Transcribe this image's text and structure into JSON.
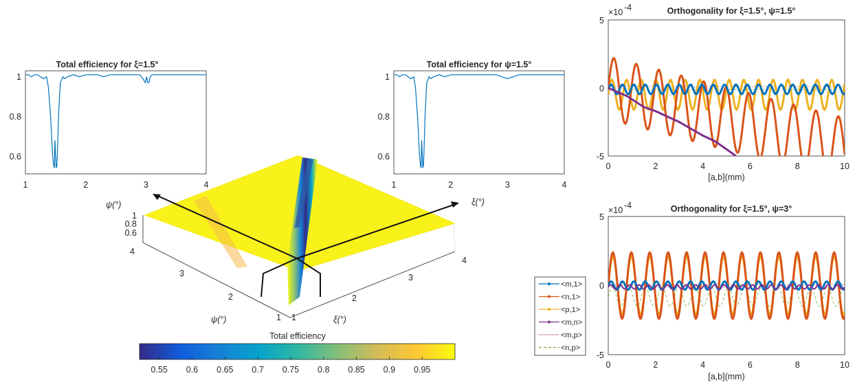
{
  "chart_data": [
    {
      "id": "eff_xi",
      "type": "line",
      "title": "Total efficiency for ξ=1.5°",
      "xlim": [
        1,
        4
      ],
      "ylim": [
        0.5,
        1.02
      ],
      "xticks": [
        "1",
        "2",
        "3",
        "4"
      ],
      "yticks": [
        "0.6",
        "0.8",
        "1"
      ],
      "series": [
        {
          "color": "#0072BD",
          "x": [
            1.0,
            1.05,
            1.1,
            1.15,
            1.2,
            1.25,
            1.3,
            1.35,
            1.38,
            1.42,
            1.45,
            1.47,
            1.48,
            1.49,
            1.5,
            1.51,
            1.52,
            1.53,
            1.55,
            1.58,
            1.62,
            1.65,
            1.7,
            1.8,
            1.9,
            2.0,
            2.1,
            2.2,
            2.3,
            2.4,
            2.5,
            2.6,
            2.7,
            2.8,
            2.9,
            2.95,
            2.97,
            2.99,
            3.01,
            3.03,
            3.05,
            3.07,
            3.1,
            3.2,
            3.3,
            3.5,
            3.7,
            4.0
          ],
          "y": [
            1.0,
            1.0,
            0.99,
            1.0,
            1.0,
            0.99,
            0.98,
            0.99,
            0.94,
            0.78,
            0.6,
            0.54,
            0.53,
            0.67,
            0.6,
            0.53,
            0.54,
            0.6,
            0.8,
            0.96,
            0.99,
            0.98,
            0.99,
            1.0,
            0.99,
            1.0,
            1.0,
            1.0,
            0.99,
            1.0,
            1.0,
            1.0,
            1.0,
            1.0,
            1.0,
            0.98,
            0.97,
            0.96,
            0.99,
            0.96,
            0.96,
            0.99,
            1.0,
            1.0,
            1.0,
            1.0,
            1.0,
            1.0
          ]
        }
      ]
    },
    {
      "id": "eff_psi",
      "type": "line",
      "title": "Total efficiency for ψ=1.5°",
      "xlim": [
        1,
        4
      ],
      "ylim": [
        0.5,
        1.02
      ],
      "xticks": [
        "1",
        "2",
        "3",
        "4"
      ],
      "yticks": [
        "0.6",
        "0.8",
        "1"
      ],
      "series": [
        {
          "color": "#0072BD",
          "x": [
            1.0,
            1.05,
            1.1,
            1.15,
            1.2,
            1.25,
            1.3,
            1.35,
            1.38,
            1.42,
            1.45,
            1.47,
            1.48,
            1.49,
            1.5,
            1.51,
            1.52,
            1.53,
            1.55,
            1.58,
            1.62,
            1.65,
            1.7,
            1.8,
            1.9,
            2.0,
            2.2,
            2.4,
            2.6,
            2.8,
            2.9,
            2.95,
            3.0,
            3.05,
            3.1,
            3.2,
            3.4,
            3.6,
            3.8,
            4.0
          ],
          "y": [
            1.0,
            1.0,
            0.99,
            1.0,
            1.0,
            0.99,
            0.98,
            0.99,
            0.94,
            0.78,
            0.6,
            0.54,
            0.53,
            0.67,
            0.6,
            0.53,
            0.54,
            0.6,
            0.8,
            0.96,
            0.99,
            0.98,
            0.99,
            1.0,
            0.99,
            1.0,
            1.0,
            1.0,
            1.0,
            1.0,
            0.99,
            0.985,
            0.98,
            0.985,
            0.99,
            1.0,
            1.0,
            1.0,
            1.0,
            1.0
          ]
        }
      ]
    },
    {
      "id": "surface",
      "type": "heatmap",
      "zlabel_ticks": [
        "1",
        "0.8",
        "0.6"
      ],
      "psi_ticks": [
        "4",
        "3",
        "2",
        "1"
      ],
      "xi_ticks": [
        "1",
        "2",
        "3",
        "4"
      ],
      "psi_label": "ψ(°)",
      "xi_label": "ξ(°)",
      "psi_label_top": "ψ(°)",
      "xi_label_top": "ξ(°)"
    },
    {
      "id": "colorbar",
      "type": "heatmap",
      "title": "Total efficiency",
      "range": [
        0.52,
        1.0
      ],
      "ticks": [
        "0.55",
        "0.6",
        "0.65",
        "0.7",
        "0.75",
        "0.8",
        "0.85",
        "0.9",
        "0.95"
      ],
      "tick_values": [
        0.55,
        0.6,
        0.65,
        0.7,
        0.75,
        0.8,
        0.85,
        0.9,
        0.95
      ],
      "colormap": [
        "#352A87",
        "#0F5CDD",
        "#1481D6",
        "#06A4CA",
        "#2EB7A4",
        "#87BF77",
        "#D1BB59",
        "#FEC832",
        "#F9FB0E"
      ]
    },
    {
      "id": "ortho1",
      "type": "line",
      "title": "Orthogonality for ξ=1.5°, ψ=1.5°",
      "exponent": "-4",
      "xlabel": "[a,b](mm)",
      "xlim": [
        0,
        10
      ],
      "ylim": [
        -5,
        5
      ],
      "xticks": [
        "0",
        "2",
        "4",
        "6",
        "8",
        "10"
      ],
      "yticks": [
        "-5",
        "0",
        "5"
      ],
      "series_style": {
        "m1": {
          "color": "#0072BD",
          "amp": 0.35,
          "period": 0.48,
          "offset": -0.1,
          "width": 3
        },
        "n1": {
          "color": "#D95319",
          "amp": 2.3,
          "period": 0.95,
          "decay": 0.45,
          "width": 3
        },
        "p1": {
          "color": "#EDB120",
          "amp": 1.1,
          "period": 0.62,
          "offset": -0.5,
          "width": 3
        },
        "mn": {
          "color": "#7E2F8E",
          "x": [
            0,
            0.8,
            1.5,
            2.0,
            2.5,
            3.0,
            3.5,
            4.0,
            4.5,
            5.0,
            5.4
          ],
          "y": [
            0.0,
            -0.6,
            -1.4,
            -1.7,
            -2.1,
            -2.5,
            -3.0,
            -3.5,
            -3.9,
            -4.5,
            -5.0
          ],
          "width": 3
        },
        "mp": {
          "color": "#A2142F",
          "value": 0.1
        },
        "np": {
          "color": "#77AC30",
          "value": -0.1
        }
      }
    },
    {
      "id": "ortho2",
      "type": "line",
      "title": "Orthogonality for ξ=1.5°, ψ=3°",
      "exponent": "-4",
      "xlabel": "[a,b](mm)",
      "xlim": [
        0,
        10
      ],
      "ylim": [
        -5,
        5
      ],
      "xticks": [
        "0",
        "2",
        "4",
        "6",
        "8",
        "10"
      ],
      "yticks": [
        "-5",
        "0",
        "5"
      ],
      "series_style": {
        "m1": {
          "color": "#0072BD",
          "amp": 0.3,
          "period": 0.48,
          "offset": 0.0,
          "width": 3
        },
        "n1": {
          "color": "#D95319",
          "amp": 2.4,
          "period": 0.78,
          "offset": 0.0,
          "width": 3
        },
        "p1": {
          "color": "#EDB120",
          "amp": 2.1,
          "period": 0.78,
          "offset": 0.0,
          "width": 3
        },
        "mn": {
          "color": "#7E2F8E",
          "amp": 0.15,
          "period": 0.4,
          "offset": -0.1,
          "width": 2
        },
        "mp": {
          "color": "#A2142F",
          "value": 0.05
        },
        "np": {
          "color": "#77AC30",
          "amp": 0.7,
          "period": 0.7,
          "offset": -0.8
        }
      },
      "legend": [
        "<m,1>",
        "<n,1>",
        "<p,1>",
        "<m,n>",
        "<m,p>",
        "<n,p>"
      ],
      "legend_placement": "left"
    }
  ]
}
